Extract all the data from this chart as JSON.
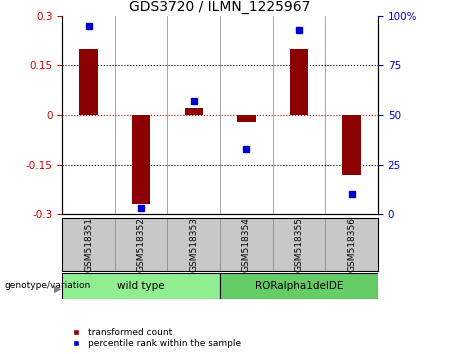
{
  "title": "GDS3720 / ILMN_1225967",
  "samples": [
    "GSM518351",
    "GSM518352",
    "GSM518353",
    "GSM518354",
    "GSM518355",
    "GSM518356"
  ],
  "red_bars": [
    0.2,
    -0.27,
    0.02,
    -0.02,
    0.2,
    -0.18
  ],
  "blue_dots": [
    95,
    3,
    57,
    33,
    93,
    10
  ],
  "ylim_left": [
    -0.3,
    0.3
  ],
  "ylim_right": [
    0,
    100
  ],
  "yticks_left": [
    -0.3,
    -0.15,
    0,
    0.15,
    0.3
  ],
  "yticks_right": [
    0,
    25,
    50,
    75,
    100
  ],
  "hlines": [
    0.15,
    -0.15
  ],
  "zero_line": 0,
  "wt_color": "#90EE90",
  "ror_color": "#66CC66",
  "bar_color": "#8B0000",
  "dot_color": "#0000CD",
  "zero_color": "#CC0000",
  "background_color": "#FFFFFF",
  "title_fontsize": 10,
  "tick_fontsize": 7.5,
  "label_fontsize": 6.5,
  "group_fontsize": 7.5
}
